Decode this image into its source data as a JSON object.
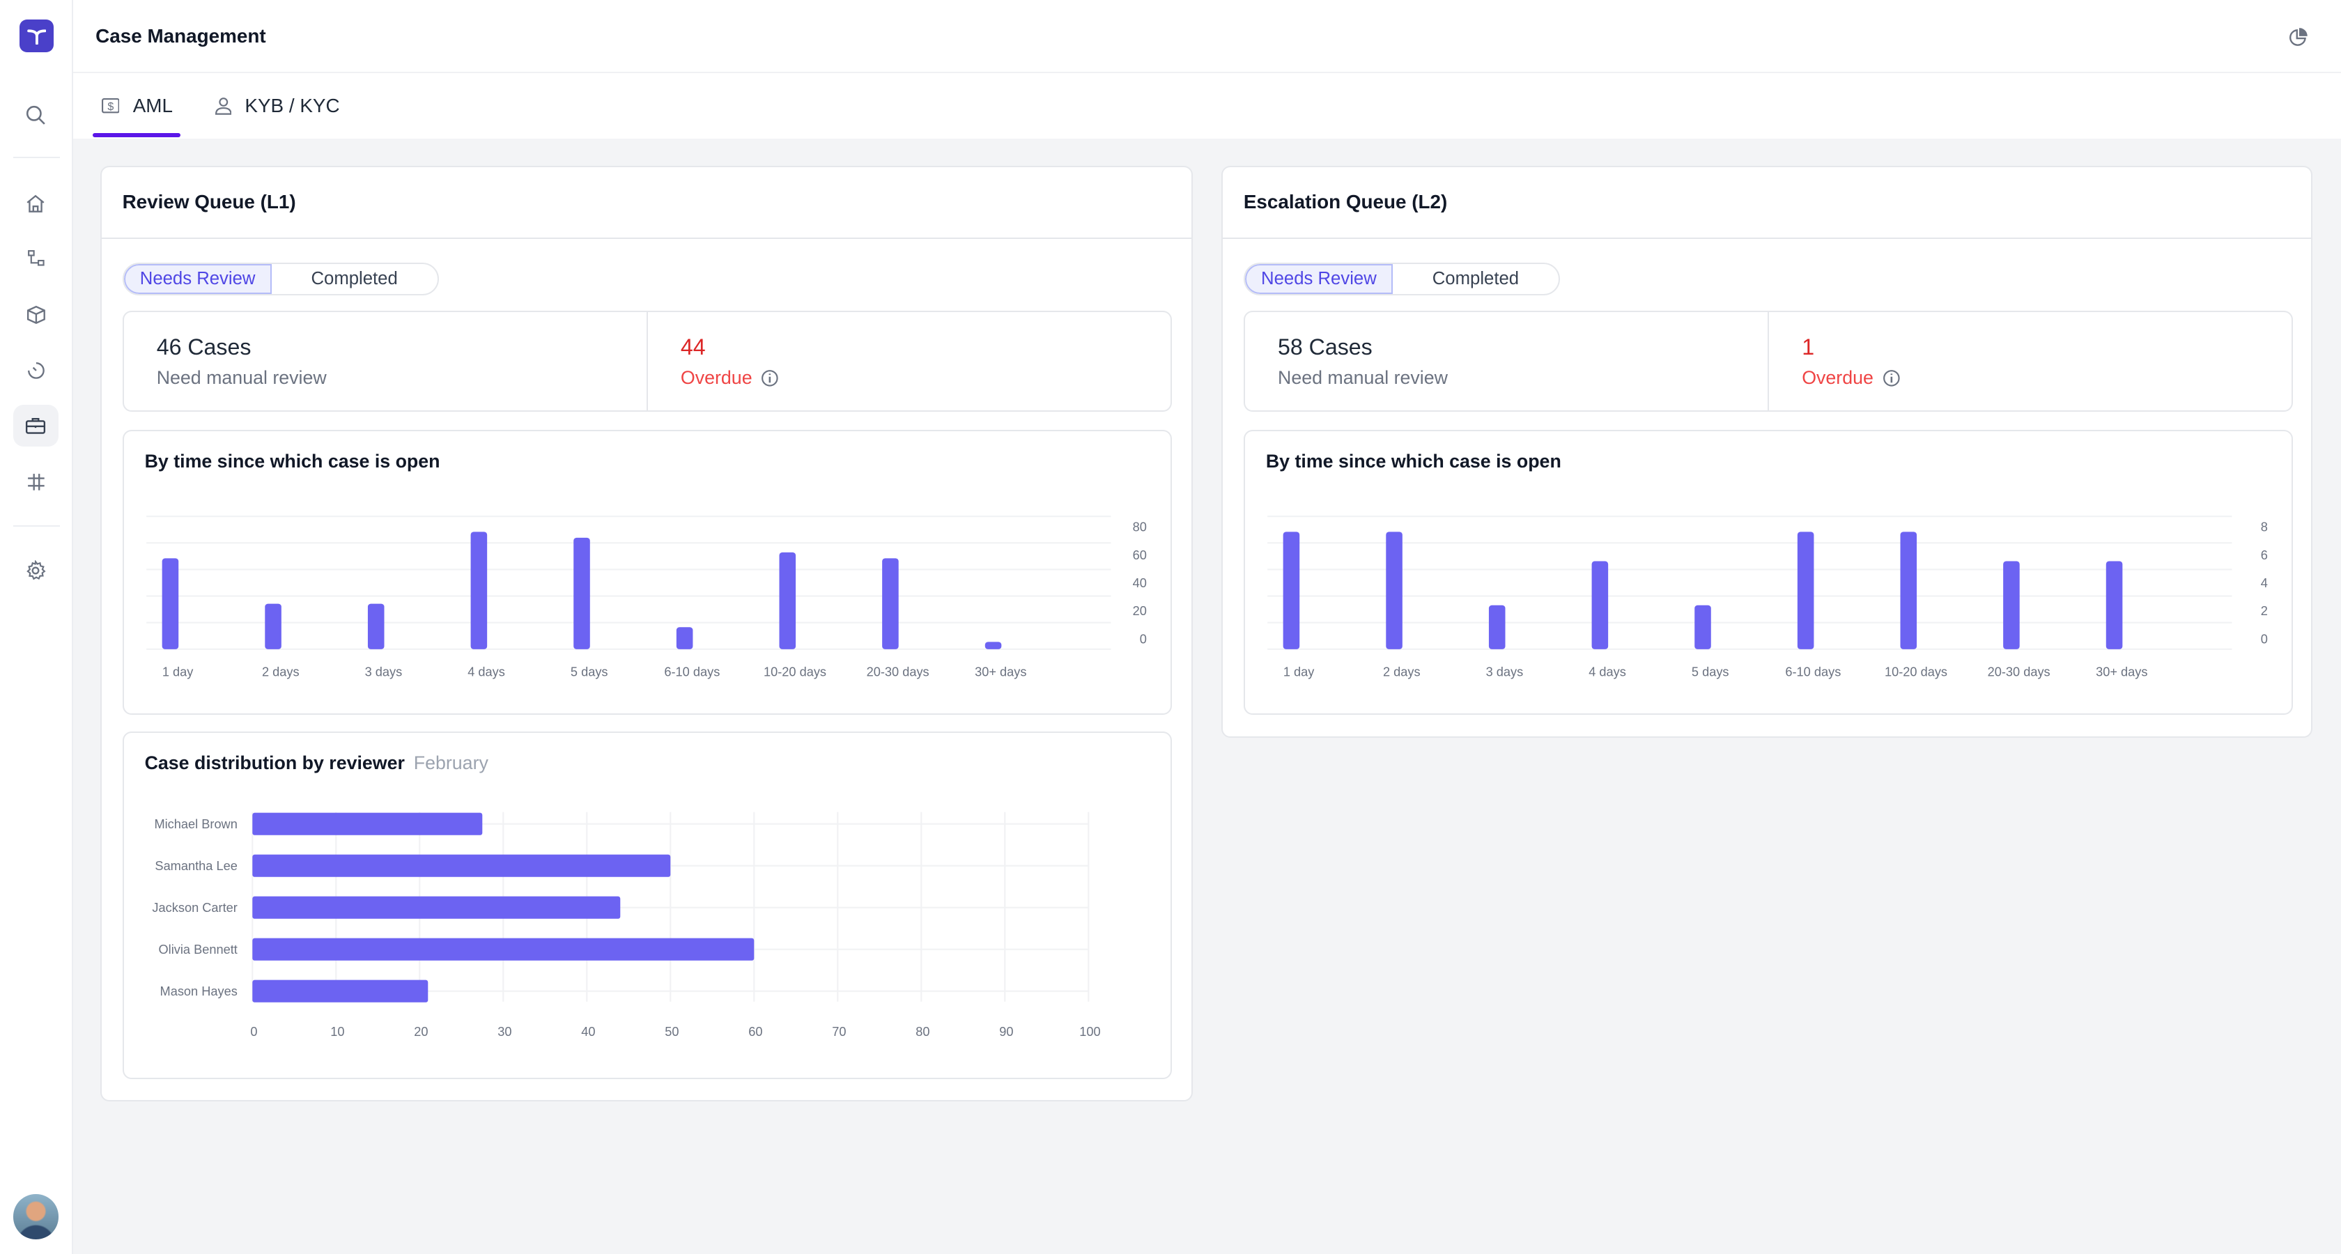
{
  "app": {
    "title": "Case Management",
    "logo_icon": "logo-y-icon",
    "header_icon": "pie-chart-icon"
  },
  "sidebar": {
    "items": [
      {
        "name": "search",
        "icon": "search-icon"
      },
      {
        "name": "home",
        "icon": "home-icon"
      },
      {
        "name": "workflows",
        "icon": "workflow-icon"
      },
      {
        "name": "products",
        "icon": "cube-icon"
      },
      {
        "name": "history",
        "icon": "timer-icon"
      },
      {
        "name": "cases",
        "icon": "briefcase-icon",
        "active": true
      },
      {
        "name": "rules",
        "icon": "sliders-icon"
      },
      {
        "name": "settings",
        "icon": "gear-icon"
      }
    ]
  },
  "tabs": [
    {
      "label": "AML",
      "icon": "dollar-icon",
      "active": true
    },
    {
      "label": "KYB / KYC",
      "icon": "user-icon",
      "active": false
    }
  ],
  "colors": {
    "accent": "#5b16e8",
    "bar": "#6c63f2",
    "overdue": "#dc2626"
  },
  "l1": {
    "title": "Review Queue (L1)",
    "toggle": [
      "Needs Review",
      "Completed"
    ],
    "cases": "46 Cases",
    "cases_sub": "Need manual review",
    "overdue": "44",
    "overdue_label": "Overdue",
    "chart_title": "By time since which case is open",
    "dist_title": "Case distribution by reviewer",
    "dist_period": "February"
  },
  "l2": {
    "title": "Escalation Queue (L2)",
    "toggle": [
      "Needs Review",
      "Completed"
    ],
    "cases": "58 Cases",
    "cases_sub": "Need manual review",
    "overdue": "1",
    "overdue_label": "Overdue",
    "chart_title": "By time since which case is open"
  },
  "chart_data": [
    {
      "type": "bar",
      "title": "By time since which case is open",
      "categories": [
        "1 day",
        "2 days",
        "3 days",
        "4 days",
        "5 days",
        "6-10 days",
        "10-20 days",
        "20-30 days",
        "30+ days"
      ],
      "values": [
        62,
        31,
        31,
        80,
        76,
        15,
        66,
        62,
        5
      ],
      "yticks": [
        "80",
        "60",
        "40",
        "20",
        "0"
      ],
      "ylim": [
        0,
        80
      ],
      "grid": true
    },
    {
      "type": "bar",
      "title": "By time since which case is open",
      "categories": [
        "1 day",
        "2 days",
        "3 days",
        "4 days",
        "5 days",
        "6-10 days",
        "10-20 days",
        "20-30 days",
        "30+ days"
      ],
      "values": [
        8,
        8,
        3,
        6,
        3,
        8,
        8,
        6,
        6
      ],
      "yticks": [
        "8",
        "6",
        "4",
        "2",
        "0"
      ],
      "ylim": [
        0,
        8
      ],
      "grid": true
    },
    {
      "type": "bar",
      "orientation": "horizontal",
      "title": "Case distribution by reviewer",
      "subtitle": "February",
      "categories": [
        "Michael Brown",
        "Samantha Lee",
        "Jackson Carter",
        "Olivia Bennett",
        "Mason Hayes"
      ],
      "values": [
        27.5,
        50,
        44,
        60,
        21
      ],
      "xticks": [
        "0",
        "10",
        "20",
        "30",
        "40",
        "50",
        "60",
        "70",
        "80",
        "90",
        "100"
      ],
      "xlim": [
        0,
        100
      ],
      "grid": true
    }
  ]
}
